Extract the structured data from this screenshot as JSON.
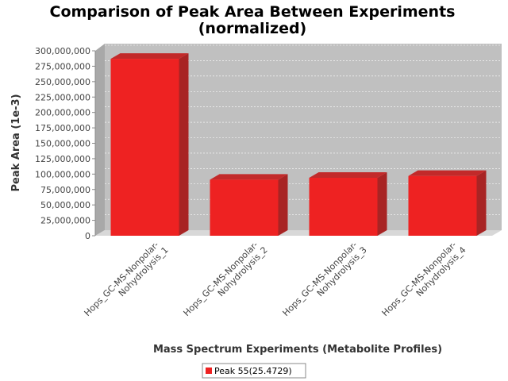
{
  "chart_data": {
    "type": "bar",
    "title": "Comparison of Peak Area Between Experiments",
    "subtitle": "(normalized)",
    "xlabel": "Mass Spectrum Experiments (Metabolite Profiles)",
    "ylabel": "Peak Area (1e-3)",
    "ylim": [
      0,
      300000000
    ],
    "yticks": [
      0,
      25000000,
      50000000,
      75000000,
      100000000,
      125000000,
      150000000,
      175000000,
      200000000,
      225000000,
      250000000,
      275000000,
      300000000
    ],
    "ytick_labels": [
      "0",
      "25,000,000",
      "50,000,000",
      "75,000,000",
      "100,000,000",
      "125,000,000",
      "150,000,000",
      "175,000,000",
      "200,000,000",
      "225,000,000",
      "250,000,000",
      "275,000,000",
      "300,000,000"
    ],
    "categories": [
      [
        "Hops_GC-MS-Nonpolar-",
        "Nohydrolysis_1"
      ],
      [
        "Hops_GC-MS-Nonpolar-",
        "Nohydrolysis_2"
      ],
      [
        "Hops_GC-MS-Nonpolar-",
        "Nohydrolysis_3"
      ],
      [
        "Hops_GC-MS-Nonpolar-",
        "Nohydrolysis_4"
      ]
    ],
    "series": [
      {
        "name": "Peak 55(25.4729)",
        "values": [
          287000000,
          91000000,
          94000000,
          97000000
        ],
        "color": "#ee2222"
      }
    ],
    "grid": true,
    "legend": "bottom",
    "style": "3d",
    "plot_background": "#c0c0c0"
  }
}
